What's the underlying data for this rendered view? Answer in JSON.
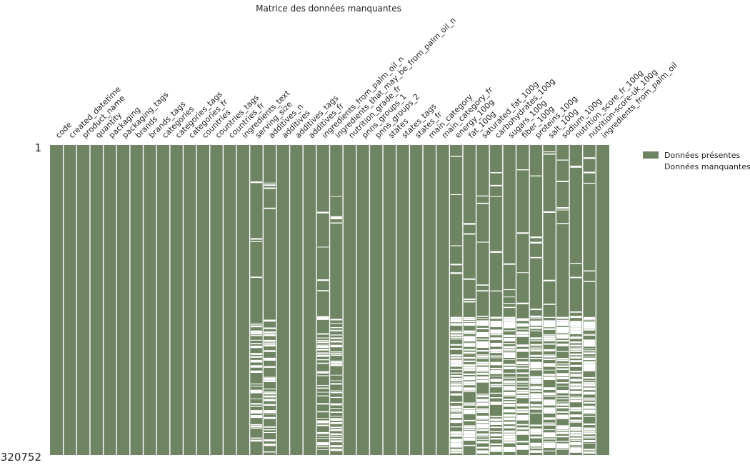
{
  "chart_data": {
    "type": "heatmap",
    "title": "Matrice des données manquantes",
    "columns": [
      "code",
      "created_datetime",
      "product_name",
      "quantity",
      "packaging",
      "packaging_tags",
      "brands",
      "brands_tags",
      "categories",
      "categories_tags",
      "categories_fr",
      "countries",
      "countries_tags",
      "countries_fr",
      "ingredients_text",
      "serving_size",
      "additives_n",
      "additives",
      "additives_tags",
      "additives_fr",
      "ingredients_from_palm_oil_n",
      "ingredients_that_may_be_from_palm_oil_n",
      "nutrition_grade_fr",
      "pnns_groups_1",
      "pnns_groups_2",
      "states",
      "states_tags",
      "states_fr",
      "main_category",
      "main_category_fr",
      "energy_100g",
      "fat_100g",
      "saturated_fat_100g",
      "carbohydrates_100g",
      "sugars_100g",
      "fiber_100g",
      "proteins_100g",
      "salt_100g",
      "sodium_100g",
      "nutrition_score_fr_100g",
      "nutrition-score-uk_100g",
      "ingredients_from_palm_oil"
    ],
    "row_range": [
      1,
      320752
    ],
    "y_tick_labels": [
      "1",
      "320752"
    ],
    "legend": [
      {
        "label": "Données présentes",
        "color": "#6e8462"
      },
      {
        "label": "Données manquantes",
        "color": "#ffffff"
      }
    ],
    "legend_position": "right",
    "present_color": "#6e8462",
    "missing_color": "#ffffff",
    "completeness": [
      1.0,
      1.0,
      1.0,
      1.0,
      1.0,
      1.0,
      1.0,
      1.0,
      1.0,
      1.0,
      1.0,
      1.0,
      1.0,
      1.0,
      1.0,
      0.78,
      0.78,
      1.0,
      1.0,
      1.0,
      0.78,
      0.78,
      1.0,
      1.0,
      1.0,
      1.0,
      1.0,
      1.0,
      1.0,
      1.0,
      0.65,
      0.64,
      0.56,
      0.62,
      0.55,
      0.66,
      0.64,
      0.63,
      0.63,
      0.55,
      0.55,
      1.0
    ]
  }
}
